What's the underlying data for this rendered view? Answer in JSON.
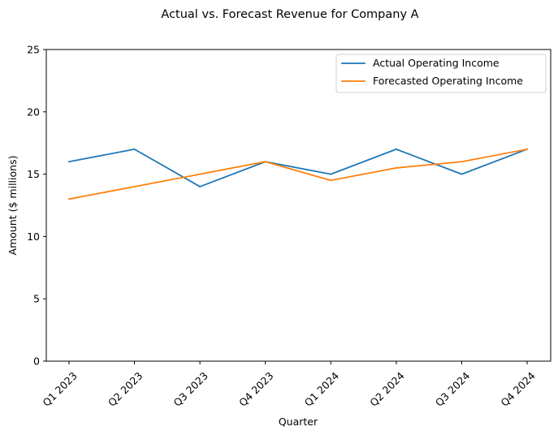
{
  "chart_data": {
    "type": "line",
    "title": "Actual vs. Forecast Revenue for Company A",
    "xlabel": "Quarter",
    "ylabel": "Amount ($ millions)",
    "categories": [
      "Q1 2023",
      "Q2 2023",
      "Q3 2023",
      "Q4 2023",
      "Q1 2024",
      "Q2 2024",
      "Q3 2024",
      "Q4 2024"
    ],
    "ylim": [
      0,
      25
    ],
    "yticks": [
      0,
      5,
      10,
      15,
      20,
      25
    ],
    "grid": false,
    "legend_position": "top-right",
    "series": [
      {
        "name": "Actual Operating Income",
        "color": "#1f77b4",
        "values": [
          16,
          17,
          14,
          16,
          15,
          17,
          15,
          17
        ]
      },
      {
        "name": "Forecasted Operating Income",
        "color": "#ff7f0e",
        "values": [
          13,
          14,
          15,
          16,
          14.5,
          15.5,
          16,
          17
        ]
      }
    ]
  }
}
